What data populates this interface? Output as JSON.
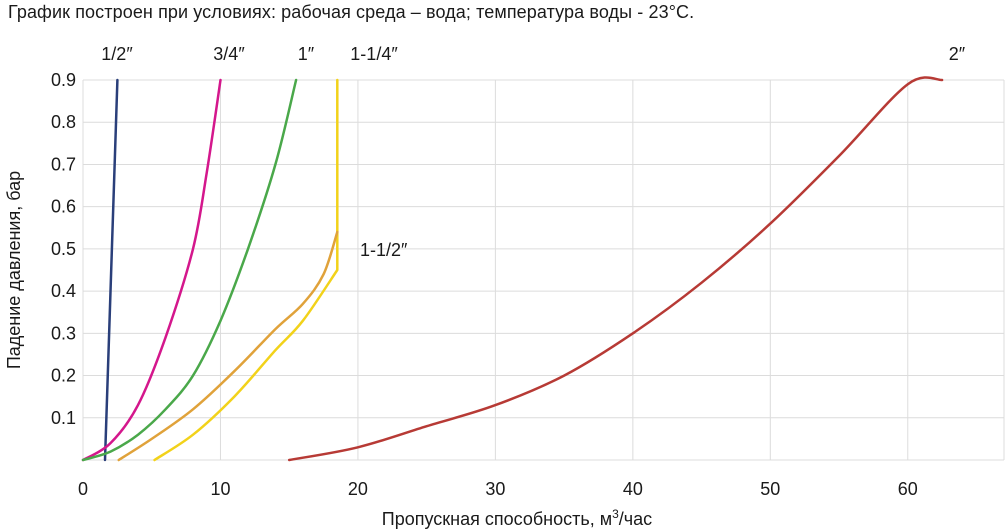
{
  "chart_data": {
    "type": "line",
    "subtitle": "График построен при условиях: рабочая среда – вода; температура воды - 23°С.",
    "xlabel_main": "Пропускная способность, м",
    "xlabel_sup": "3",
    "xlabel_tail": "/час",
    "ylabel": "Падение давления, бар",
    "xlim": [
      0,
      67
    ],
    "ylim": [
      0,
      0.9
    ],
    "x_ticks": [
      {
        "value": 0,
        "label": "0"
      },
      {
        "value": 10,
        "label": "10"
      },
      {
        "value": 20,
        "label": "20"
      },
      {
        "value": 30,
        "label": "30"
      },
      {
        "value": 40,
        "label": "40"
      },
      {
        "value": 50,
        "label": "50"
      },
      {
        "value": 60,
        "label": "60"
      }
    ],
    "y_ticks": [
      {
        "value": 0.1,
        "label": "0.1"
      },
      {
        "value": 0.2,
        "label": "0.2"
      },
      {
        "value": 0.3,
        "label": "0.3"
      },
      {
        "value": 0.4,
        "label": "0.4"
      },
      {
        "value": 0.5,
        "label": "0.5"
      },
      {
        "value": 0.6,
        "label": "0.6"
      },
      {
        "value": 0.7,
        "label": "0.7"
      },
      {
        "value": 0.8,
        "label": "0.8"
      },
      {
        "value": 0.9,
        "label": "0.9"
      }
    ],
    "grid": true,
    "series": [
      {
        "name": "1/2″",
        "color": "#2a3f7a",
        "x": [
          1.6,
          2.5
        ],
        "y": [
          0.0,
          0.9
        ]
      },
      {
        "name": "3/4″",
        "color": "#d4178c",
        "x": [
          0.0,
          2.0,
          4.0,
          6.0,
          8.0,
          9.0,
          10.0
        ],
        "y": [
          0.0,
          0.04,
          0.13,
          0.29,
          0.5,
          0.68,
          0.9
        ]
      },
      {
        "name": "1″",
        "color": "#4aa84a",
        "x": [
          0.0,
          2.0,
          4.0,
          6.0,
          8.0,
          10.0,
          12.0,
          14.0,
          15.5
        ],
        "y": [
          0.0,
          0.02,
          0.06,
          0.12,
          0.2,
          0.33,
          0.5,
          0.7,
          0.9
        ]
      },
      {
        "name": "1-1/4″",
        "color": "#f2d21a",
        "x": [
          5.2,
          8.0,
          11.0,
          14.0,
          16.0,
          18.5,
          18.5
        ],
        "y": [
          0.0,
          0.06,
          0.15,
          0.26,
          0.33,
          0.45,
          0.9
        ]
      },
      {
        "name": "1-1/2″",
        "color": "#e0a23a",
        "x": [
          2.6,
          5.0,
          8.0,
          11.0,
          14.0,
          16.0,
          17.5,
          18.5
        ],
        "y": [
          0.0,
          0.05,
          0.12,
          0.21,
          0.31,
          0.37,
          0.44,
          0.54
        ]
      },
      {
        "name": "2″",
        "color": "#b73a35",
        "x": [
          15.0,
          20.0,
          25.0,
          30.0,
          35.0,
          40.0,
          45.0,
          50.0,
          55.0,
          60.0,
          62.5
        ],
        "y": [
          0.0,
          0.03,
          0.08,
          0.13,
          0.2,
          0.3,
          0.42,
          0.56,
          0.72,
          0.89,
          0.9
        ]
      }
    ]
  }
}
